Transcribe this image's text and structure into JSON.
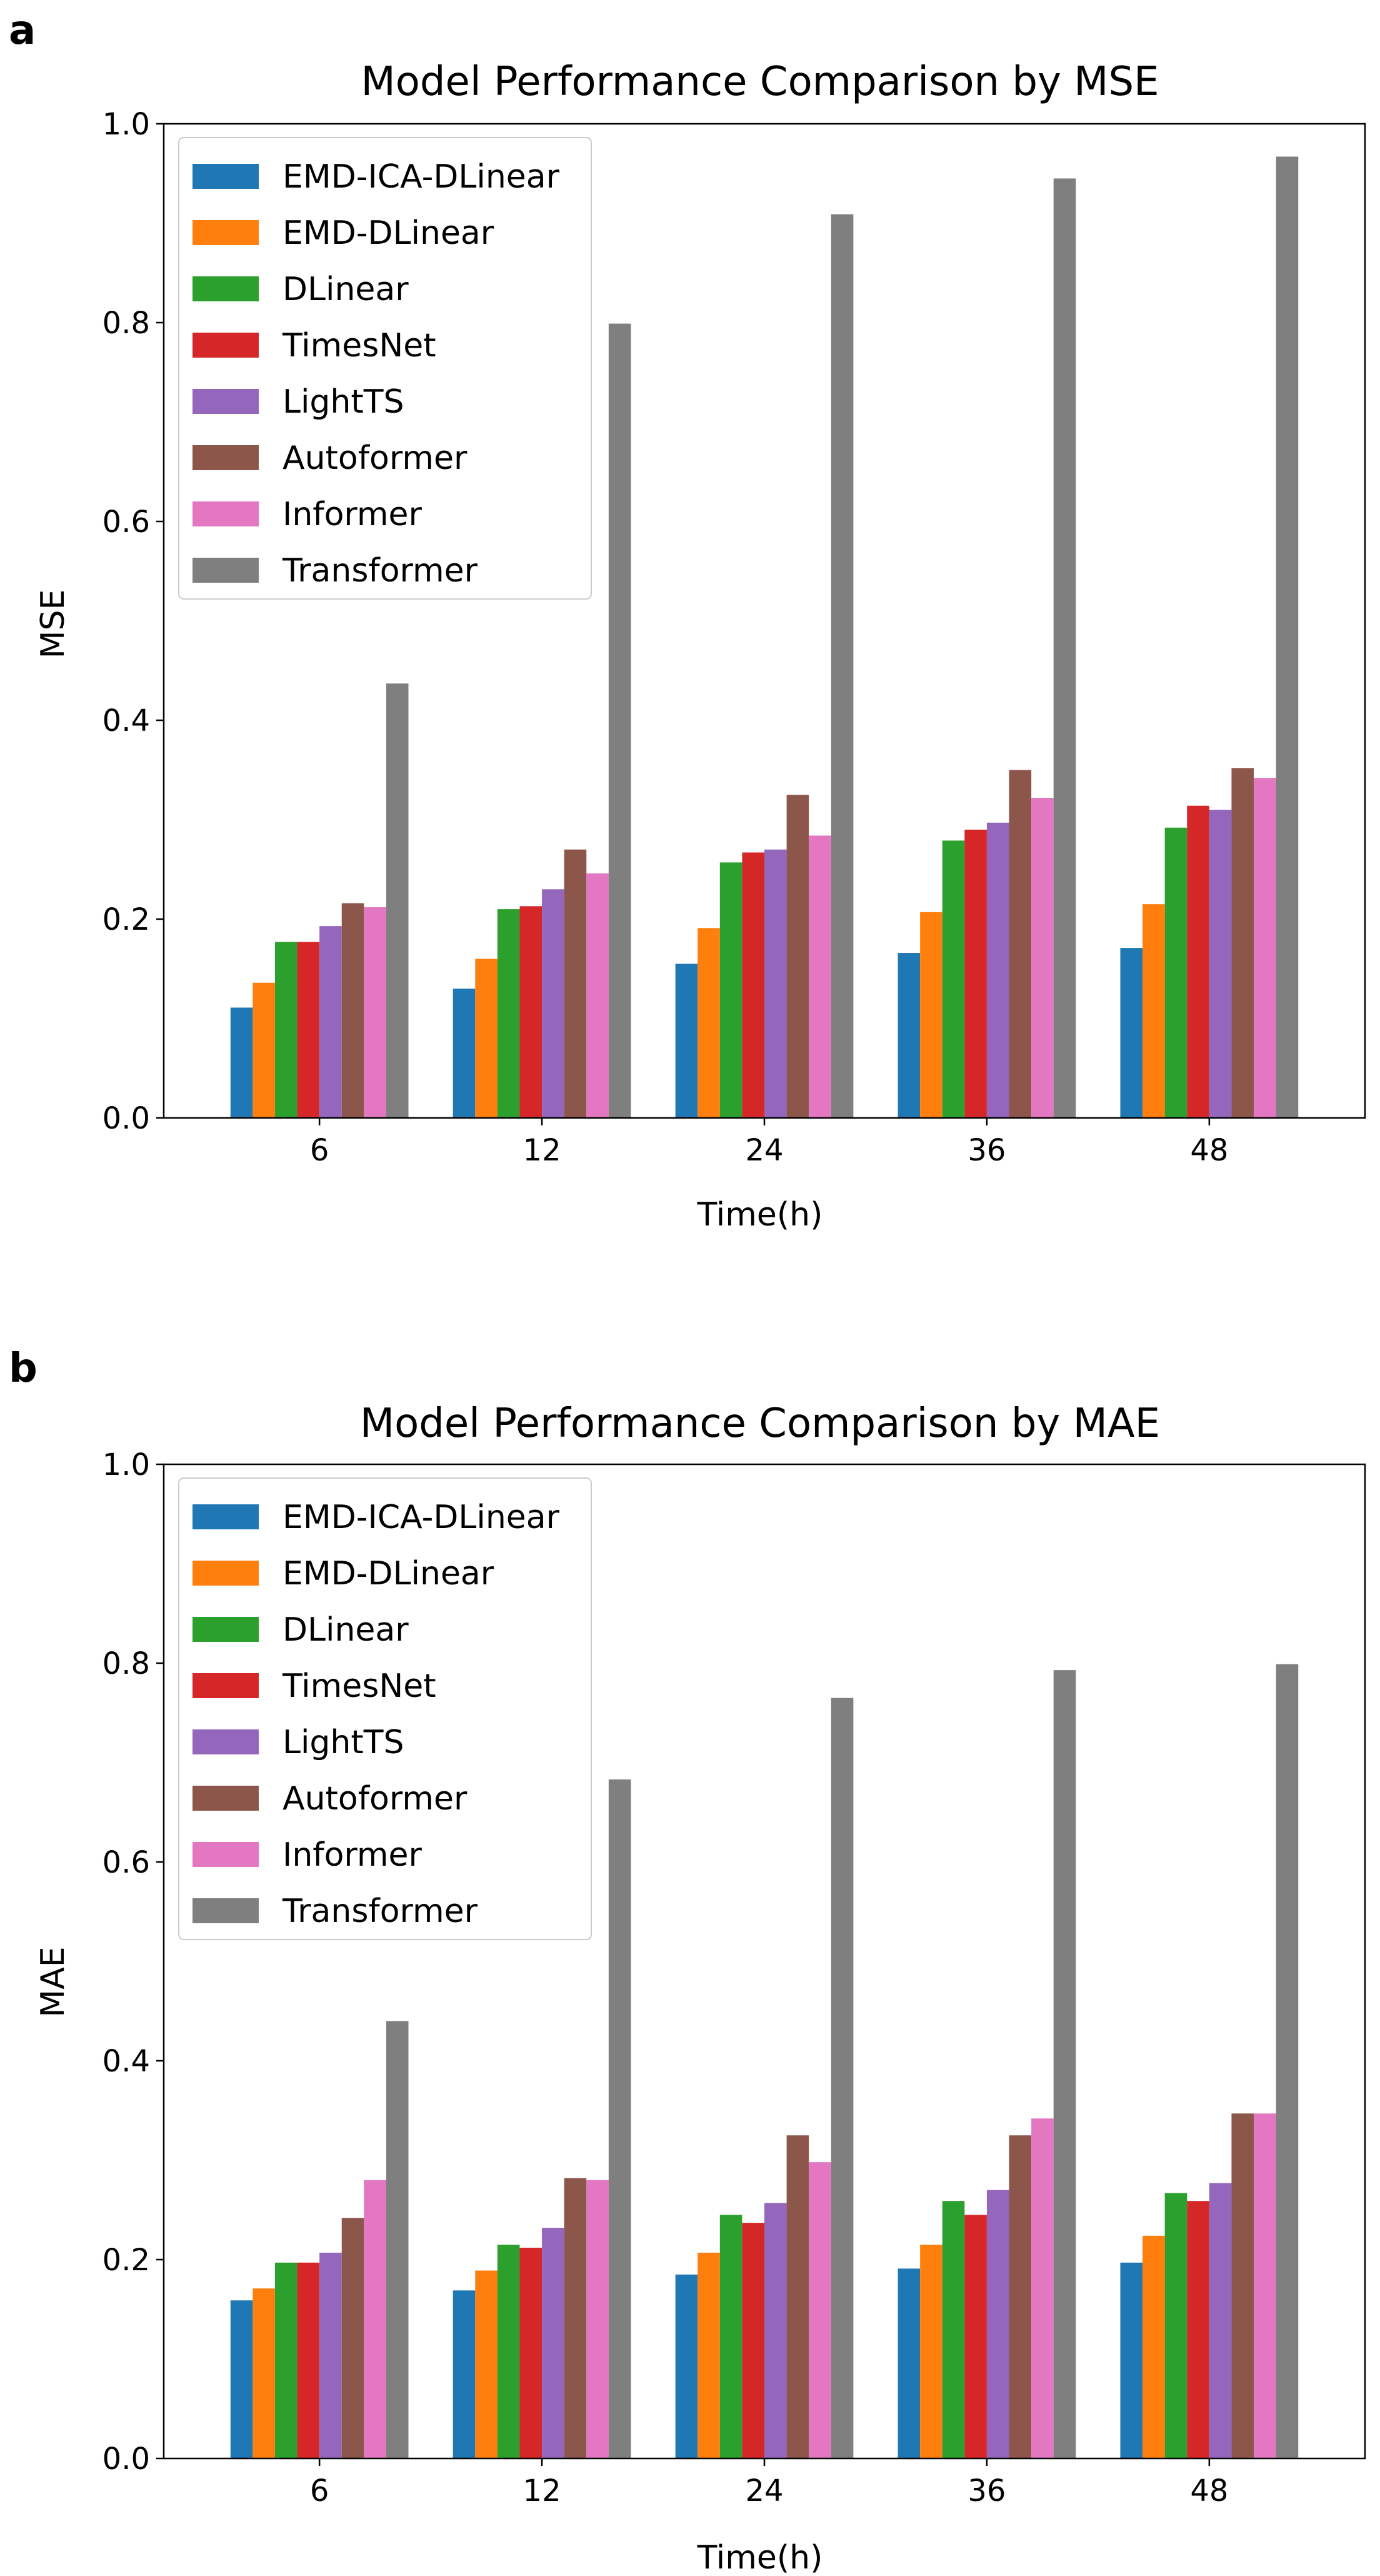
{
  "panels": [
    {
      "letter": "a"
    },
    {
      "letter": "b"
    }
  ],
  "chart_data": [
    {
      "type": "bar",
      "title": "Model Performance Comparison by MSE",
      "xlabel": "Time(h)",
      "ylabel": "MSE",
      "ylim": [
        0,
        1.0
      ],
      "yticks": [
        "0.0",
        "0.2",
        "0.4",
        "0.6",
        "0.8",
        "1.0"
      ],
      "categories": [
        "6",
        "12",
        "24",
        "36",
        "48"
      ],
      "legend_position": "top-left",
      "series": [
        {
          "name": "EMD-ICA-DLinear",
          "color": "#1f77b4",
          "values": [
            0.111,
            0.13,
            0.155,
            0.166,
            0.171
          ]
        },
        {
          "name": "EMD-DLinear",
          "color": "#ff7f0e",
          "values": [
            0.136,
            0.16,
            0.191,
            0.207,
            0.215
          ]
        },
        {
          "name": "DLinear",
          "color": "#2ca02c",
          "values": [
            0.177,
            0.21,
            0.257,
            0.279,
            0.292
          ]
        },
        {
          "name": "TimesNet",
          "color": "#d62728",
          "values": [
            0.177,
            0.213,
            0.267,
            0.29,
            0.314
          ]
        },
        {
          "name": "LightTS",
          "color": "#9467bd",
          "values": [
            0.193,
            0.23,
            0.27,
            0.297,
            0.31
          ]
        },
        {
          "name": "Autoformer",
          "color": "#8c564b",
          "values": [
            0.216,
            0.27,
            0.325,
            0.35,
            0.352
          ]
        },
        {
          "name": "Informer",
          "color": "#e377c2",
          "values": [
            0.212,
            0.246,
            0.284,
            0.322,
            0.342
          ]
        },
        {
          "name": "Transformer",
          "color": "#7f7f7f",
          "values": [
            0.437,
            0.799,
            0.909,
            0.945,
            0.967
          ]
        }
      ]
    },
    {
      "type": "bar",
      "title": "Model Performance Comparison by MAE",
      "xlabel": "Time(h)",
      "ylabel": "MAE",
      "ylim": [
        0,
        1.0
      ],
      "yticks": [
        "0.0",
        "0.2",
        "0.4",
        "0.6",
        "0.8",
        "1.0"
      ],
      "categories": [
        "6",
        "12",
        "24",
        "36",
        "48"
      ],
      "legend_position": "top-left",
      "series": [
        {
          "name": "EMD-ICA-DLinear",
          "color": "#1f77b4",
          "values": [
            0.159,
            0.169,
            0.185,
            0.191,
            0.197
          ]
        },
        {
          "name": "EMD-DLinear",
          "color": "#ff7f0e",
          "values": [
            0.171,
            0.189,
            0.207,
            0.215,
            0.224
          ]
        },
        {
          "name": "DLinear",
          "color": "#2ca02c",
          "values": [
            0.197,
            0.215,
            0.245,
            0.259,
            0.267
          ]
        },
        {
          "name": "TimesNet",
          "color": "#d62728",
          "values": [
            0.197,
            0.212,
            0.237,
            0.245,
            0.259
          ]
        },
        {
          "name": "LightTS",
          "color": "#9467bd",
          "values": [
            0.207,
            0.232,
            0.257,
            0.27,
            0.277
          ]
        },
        {
          "name": "Autoformer",
          "color": "#8c564b",
          "values": [
            0.242,
            0.282,
            0.325,
            0.325,
            0.347
          ]
        },
        {
          "name": "Informer",
          "color": "#e377c2",
          "values": [
            0.28,
            0.28,
            0.298,
            0.342,
            0.347
          ]
        },
        {
          "name": "Transformer",
          "color": "#7f7f7f",
          "values": [
            0.44,
            0.683,
            0.765,
            0.793,
            0.799
          ]
        }
      ]
    }
  ]
}
